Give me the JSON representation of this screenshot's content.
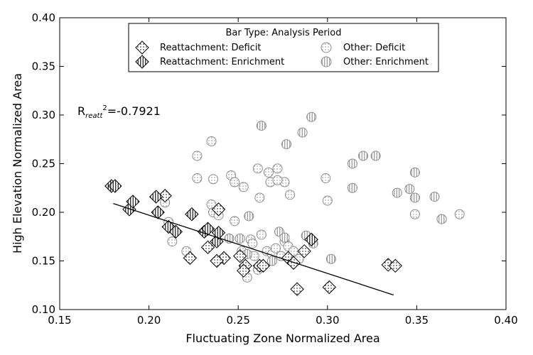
{
  "chart_data": {
    "type": "scatter",
    "title": "",
    "xlabel": "Fluctuating Zone Normalized Area",
    "ylabel": "High Elevation Normalized Area",
    "xlim": [
      0.15,
      0.4
    ],
    "ylim": [
      0.1,
      0.4
    ],
    "xticks": [
      "0.15",
      "0.20",
      "0.25",
      "0.30",
      "0.35",
      "0.40"
    ],
    "yticks": [
      "0.10",
      "0.15",
      "0.20",
      "0.25",
      "0.30",
      "0.35",
      "0.40"
    ],
    "grid": false,
    "legend": {
      "title": "Bar Type: Analysis Period",
      "placement": "top-center",
      "entries": [
        {
          "label": "Reattachment: Deficit",
          "marker": "diamond",
          "hatch": "dots"
        },
        {
          "label": "Reattachment: Enrichment",
          "marker": "diamond",
          "hatch": "vertical-lines"
        },
        {
          "label": "Other: Deficit",
          "marker": "circle",
          "hatch": "dots"
        },
        {
          "label": "Other: Enrichment",
          "marker": "circle",
          "hatch": "vertical-lines"
        }
      ]
    },
    "annotation": {
      "prefix": "R",
      "subscript": "reatt",
      "superscript": "2",
      "value": "=-0.7921"
    },
    "trendline": {
      "x": [
        0.18,
        0.337
      ],
      "y": [
        0.209,
        0.115
      ]
    },
    "series": [
      {
        "name": "Reattachment: Deficit",
        "marker": "diamond",
        "hatch": "dots",
        "points": [
          [
            0.209,
            0.217
          ],
          [
            0.239,
            0.203
          ],
          [
            0.233,
            0.164
          ],
          [
            0.242,
            0.153
          ],
          [
            0.251,
            0.155
          ],
          [
            0.254,
            0.145
          ],
          [
            0.253,
            0.14
          ],
          [
            0.262,
            0.145
          ],
          [
            0.264,
            0.145
          ],
          [
            0.278,
            0.153
          ],
          [
            0.281,
            0.148
          ],
          [
            0.287,
            0.16
          ],
          [
            0.283,
            0.121
          ],
          [
            0.301,
            0.123
          ],
          [
            0.334,
            0.146
          ],
          [
            0.338,
            0.145
          ],
          [
            0.223,
            0.153
          ],
          [
            0.238,
            0.15
          ]
        ]
      },
      {
        "name": "Reattachment: Enrichment",
        "marker": "diamond",
        "hatch": "vertical-lines",
        "points": [
          [
            0.179,
            0.227
          ],
          [
            0.181,
            0.227
          ],
          [
            0.189,
            0.203
          ],
          [
            0.191,
            0.211
          ],
          [
            0.204,
            0.216
          ],
          [
            0.205,
            0.2
          ],
          [
            0.211,
            0.185
          ],
          [
            0.215,
            0.18
          ],
          [
            0.224,
            0.198
          ],
          [
            0.231,
            0.18
          ],
          [
            0.233,
            0.183
          ],
          [
            0.238,
            0.17
          ],
          [
            0.239,
            0.179
          ],
          [
            0.291,
            0.172
          ]
        ]
      },
      {
        "name": "Other: Deficit",
        "marker": "circle",
        "hatch": "dots",
        "points": [
          [
            0.227,
            0.258
          ],
          [
            0.227,
            0.235
          ],
          [
            0.235,
            0.273
          ],
          [
            0.236,
            0.234
          ],
          [
            0.246,
            0.238
          ],
          [
            0.248,
            0.231
          ],
          [
            0.253,
            0.226
          ],
          [
            0.261,
            0.245
          ],
          [
            0.262,
            0.215
          ],
          [
            0.267,
            0.241
          ],
          [
            0.268,
            0.231
          ],
          [
            0.272,
            0.245
          ],
          [
            0.276,
            0.231
          ],
          [
            0.279,
            0.218
          ],
          [
            0.272,
            0.233
          ],
          [
            0.235,
            0.208
          ],
          [
            0.236,
            0.2
          ],
          [
            0.239,
            0.197
          ],
          [
            0.248,
            0.191
          ],
          [
            0.257,
            0.172
          ],
          [
            0.258,
            0.168
          ],
          [
            0.263,
            0.177
          ],
          [
            0.266,
            0.16
          ],
          [
            0.269,
            0.157
          ],
          [
            0.271,
            0.163
          ],
          [
            0.274,
            0.155
          ],
          [
            0.276,
            0.17
          ],
          [
            0.278,
            0.165
          ],
          [
            0.281,
            0.16
          ],
          [
            0.284,
            0.152
          ],
          [
            0.255,
            0.133
          ],
          [
            0.259,
            0.155
          ],
          [
            0.261,
            0.141
          ],
          [
            0.299,
            0.235
          ],
          [
            0.3,
            0.212
          ],
          [
            0.349,
            0.198
          ],
          [
            0.374,
            0.198
          ],
          [
            0.364,
            0.193
          ],
          [
            0.209,
            0.21
          ],
          [
            0.211,
            0.19
          ],
          [
            0.213,
            0.17
          ],
          [
            0.221,
            0.16
          ],
          [
            0.252,
            0.16
          ]
        ]
      },
      {
        "name": "Other: Enrichment",
        "marker": "circle",
        "hatch": "vertical-lines",
        "points": [
          [
            0.263,
            0.289
          ],
          [
            0.277,
            0.27
          ],
          [
            0.286,
            0.282
          ],
          [
            0.291,
            0.298
          ],
          [
            0.314,
            0.25
          ],
          [
            0.314,
            0.225
          ],
          [
            0.32,
            0.258
          ],
          [
            0.327,
            0.258
          ],
          [
            0.339,
            0.22
          ],
          [
            0.346,
            0.224
          ],
          [
            0.349,
            0.241
          ],
          [
            0.349,
            0.215
          ],
          [
            0.36,
            0.216
          ],
          [
            0.364,
            0.193
          ],
          [
            0.302,
            0.152
          ],
          [
            0.288,
            0.176
          ],
          [
            0.292,
            0.168
          ],
          [
            0.273,
            0.18
          ],
          [
            0.276,
            0.174
          ],
          [
            0.256,
            0.196
          ],
          [
            0.245,
            0.173
          ],
          [
            0.251,
            0.173
          ],
          [
            0.255,
            0.157
          ],
          [
            0.269,
            0.15
          ]
        ]
      }
    ]
  }
}
